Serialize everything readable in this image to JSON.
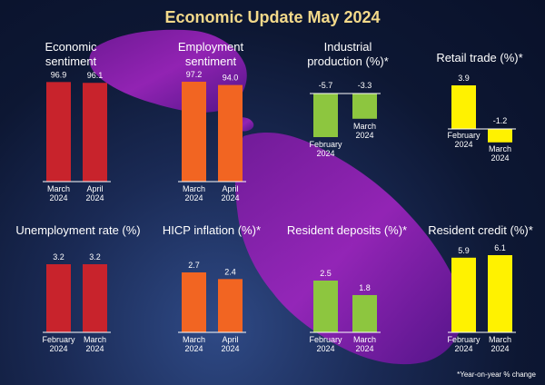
{
  "title": "Economic Update May 2024",
  "footnote": "*Year-on-year % change",
  "colors": {
    "red": "#c8232c",
    "orange": "#f26522",
    "green": "#8dc63f",
    "yellow": "#fff200",
    "title": "#f3d98a"
  },
  "chart_data": [
    {
      "type": "bar",
      "title_lines": [
        "Economic",
        "sentiment"
      ],
      "categories": [
        [
          "March",
          "2024"
        ],
        [
          "April",
          "2024"
        ]
      ],
      "values": [
        96.9,
        96.1
      ],
      "value_labels": [
        "96.9",
        "96.1"
      ],
      "color": "#c8232c"
    },
    {
      "type": "bar",
      "title_lines": [
        "Employment",
        "sentiment"
      ],
      "categories": [
        [
          "March",
          "2024"
        ],
        [
          "April",
          "2024"
        ]
      ],
      "values": [
        97.2,
        94.0
      ],
      "value_labels": [
        "97.2",
        "94.0"
      ],
      "color": "#f26522"
    },
    {
      "type": "bar",
      "title_lines": [
        "Industrial",
        "production (%)*"
      ],
      "categories": [
        [
          "February",
          "2024"
        ],
        [
          "March",
          "2024"
        ]
      ],
      "values": [
        -5.7,
        -3.3
      ],
      "value_labels": [
        "-5.7",
        "-3.3"
      ],
      "color": "#8dc63f"
    },
    {
      "type": "bar",
      "title_lines": [
        "Retail trade (%)*"
      ],
      "categories": [
        [
          "February",
          "2024"
        ],
        [
          "March",
          "2024"
        ]
      ],
      "values": [
        3.9,
        -1.2
      ],
      "value_labels": [
        "3.9",
        "-1.2"
      ],
      "color": "#fff200"
    },
    {
      "type": "bar",
      "title_lines": [
        "Unemployment rate (%)"
      ],
      "categories": [
        [
          "February",
          "2024"
        ],
        [
          "March",
          "2024"
        ]
      ],
      "values": [
        3.2,
        3.2
      ],
      "value_labels": [
        "3.2",
        "3.2"
      ],
      "color": "#c8232c"
    },
    {
      "type": "bar",
      "title_lines": [
        "HICP inflation (%)*"
      ],
      "categories": [
        [
          "March",
          "2024"
        ],
        [
          "April",
          "2024"
        ]
      ],
      "values": [
        2.7,
        2.4
      ],
      "value_labels": [
        "2.7",
        "2.4"
      ],
      "color": "#f26522"
    },
    {
      "type": "bar",
      "title_lines": [
        "Resident deposits (%)*"
      ],
      "categories": [
        [
          "February",
          "2024"
        ],
        [
          "March",
          "2024"
        ]
      ],
      "values": [
        2.5,
        1.8
      ],
      "value_labels": [
        "2.5",
        "1.8"
      ],
      "color": "#8dc63f"
    },
    {
      "type": "bar",
      "title_lines": [
        "Resident credit (%)*"
      ],
      "categories": [
        [
          "February",
          "2024"
        ],
        [
          "March",
          "2024"
        ]
      ],
      "values": [
        5.9,
        6.1
      ],
      "value_labels": [
        "5.9",
        "6.1"
      ],
      "color": "#fff200"
    }
  ]
}
